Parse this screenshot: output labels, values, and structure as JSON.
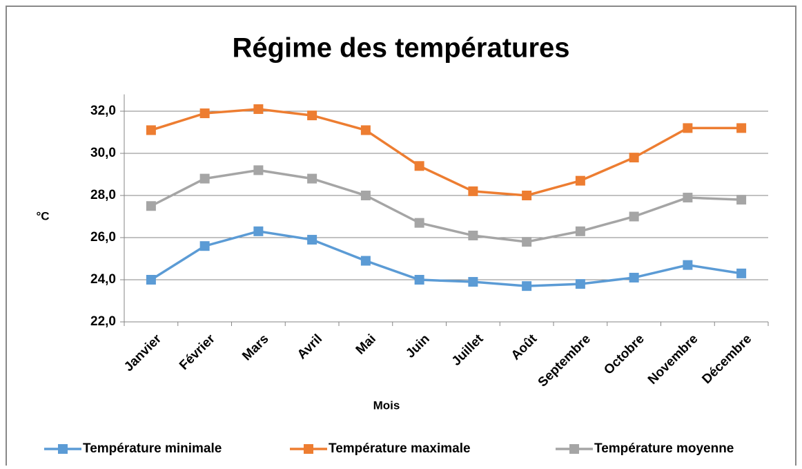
{
  "chart_data": {
    "type": "line",
    "title": "Régime des températures",
    "xlabel": "Mois",
    "ylabel": "°C",
    "categories": [
      "Janvier",
      "Février",
      "Mars",
      "Avril",
      "Mai",
      "Juin",
      "Juillet",
      "Août",
      "Septembre",
      "Octobre",
      "Novembre",
      "Décembre"
    ],
    "series": [
      {
        "name": "Température minimale",
        "color": "#5b9bd5",
        "values": [
          24.0,
          25.6,
          26.3,
          25.9,
          24.9,
          24.0,
          23.9,
          23.7,
          23.8,
          24.1,
          24.7,
          24.3
        ]
      },
      {
        "name": "Température maximale",
        "color": "#ed7d31",
        "values": [
          31.1,
          31.9,
          32.1,
          31.8,
          31.1,
          29.4,
          28.2,
          28.0,
          28.7,
          29.8,
          31.2,
          31.2
        ]
      },
      {
        "name": "Température moyenne",
        "color": "#a5a5a5",
        "values": [
          27.5,
          28.8,
          29.2,
          28.8,
          28.0,
          26.7,
          26.1,
          25.8,
          26.3,
          27.0,
          27.9,
          27.8
        ]
      }
    ],
    "ylim": [
      22,
      32.8
    ],
    "yticks": [
      {
        "value": 22,
        "label": "22,0"
      },
      {
        "value": 24,
        "label": "24,0"
      },
      {
        "value": 26,
        "label": "26,0"
      },
      {
        "value": 28,
        "label": "28,0"
      },
      {
        "value": 30,
        "label": "30,0"
      },
      {
        "value": 32,
        "label": "32,0"
      }
    ],
    "grid": true,
    "legend": "bottom"
  }
}
